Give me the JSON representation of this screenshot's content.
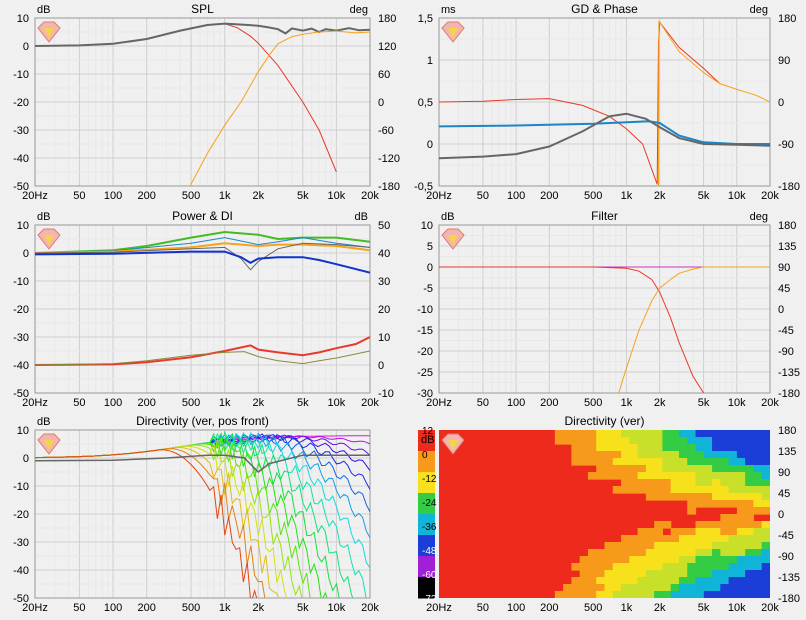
{
  "colors": {
    "red": "#e8392a",
    "orange": "#f7a21b",
    "gray": "#666666",
    "blue": "#1a86c8",
    "darkblue": "#1133cc",
    "green": "#44bb22",
    "olive": "#8b8a3a",
    "magenta": "#cc33cc",
    "grid_major": "#d0d0d0",
    "grid_minor": "#e8e8e8",
    "bg": "#f0f0f0"
  },
  "x_ticks": [
    "20Hz",
    "50",
    "100",
    "200",
    "500",
    "1k",
    "2k",
    "5k",
    "10k",
    "20k"
  ],
  "chart_data": [
    {
      "id": "spl",
      "type": "line",
      "title": "SPL",
      "ylabel_left": "dB",
      "ylabel_right": "deg",
      "xlim": [
        20,
        20000
      ],
      "xscale": "log",
      "ylim": [
        -50,
        10
      ],
      "y2lim": [
        -180,
        180
      ],
      "y_ticks": [
        "10",
        "0",
        "-10",
        "-20",
        "-30",
        "-40",
        "-50"
      ],
      "y2_ticks": [
        "180",
        "120",
        "60",
        "0",
        "-60",
        "-120",
        "-180"
      ],
      "series": [
        {
          "color": "red",
          "width": 1,
          "x": [
            20,
            50,
            100,
            200,
            400,
            700,
            1000,
            1300,
            1700,
            2000,
            3000,
            5000,
            7000,
            10000
          ],
          "y": [
            0,
            0.2,
            0.8,
            2.5,
            5.5,
            7.5,
            8,
            6.5,
            3.5,
            1,
            -7,
            -20,
            -30,
            -45
          ]
        },
        {
          "color": "gray",
          "width": 2,
          "x": [
            20,
            50,
            100,
            200,
            400,
            700,
            1000,
            1500,
            2000,
            2500,
            3000,
            3500,
            4000,
            5000,
            6000,
            7000,
            8000,
            10000,
            13000,
            16000,
            20000
          ],
          "y": [
            0,
            0.2,
            0.8,
            2.5,
            5.5,
            7.5,
            8,
            7.6,
            7.2,
            6.6,
            6,
            4.5,
            6.3,
            5.5,
            6.2,
            5,
            6,
            5.5,
            6.4,
            5.6,
            5.8
          ]
        },
        {
          "color": "orange",
          "width": 1,
          "axis": "right",
          "x": [
            490,
            700,
            1000,
            1400,
            2000,
            2500,
            3000,
            4000,
            5000,
            7000,
            10000,
            15000,
            20000
          ],
          "y": [
            -180,
            -110,
            -50,
            0,
            65,
            100,
            125,
            140,
            145,
            150,
            152,
            148,
            150
          ]
        }
      ]
    },
    {
      "id": "gd_phase",
      "type": "line",
      "title": "GD & Phase",
      "ylabel_left": "ms",
      "ylabel_right": "deg",
      "xlim": [
        20,
        20000
      ],
      "xscale": "log",
      "ylim": [
        -0.5,
        1.5
      ],
      "y2lim": [
        -180,
        180
      ],
      "y_ticks": [
        "1,5",
        "1",
        "0,5",
        "0",
        "-0,5"
      ],
      "y2_ticks": [
        "180",
        "90",
        "0",
        "-90",
        "-180"
      ],
      "series": [
        {
          "color": "red",
          "width": 1,
          "x": [
            20,
            50,
            100,
            200,
            400,
            700,
            1000,
            1400,
            1900,
            1950,
            2000,
            3000,
            5000,
            7000
          ],
          "y": [
            0.5,
            0.51,
            0.53,
            0.54,
            0.46,
            0.33,
            0.18,
            0,
            -0.48,
            1.2,
            1.45,
            1.15,
            0.9,
            0.72
          ]
        },
        {
          "color": "orange",
          "width": 1,
          "x": [
            1950,
            1970,
            2000,
            3000,
            5000,
            7000,
            10000,
            15000,
            20000
          ],
          "y": [
            -0.5,
            1.46,
            1.45,
            1.1,
            0.85,
            0.72,
            0.65,
            0.58,
            0.5
          ]
        },
        {
          "color": "blue",
          "width": 2,
          "x": [
            20,
            100,
            500,
            1000,
            1600,
            2000,
            3000,
            5000,
            10000,
            20000
          ],
          "y": [
            0.21,
            0.22,
            0.24,
            0.26,
            0.27,
            0.25,
            0.1,
            0.02,
            0,
            0
          ]
        },
        {
          "color": "gray",
          "width": 2,
          "x": [
            20,
            50,
            100,
            200,
            400,
            700,
            1000,
            1500,
            2000,
            3000,
            5000,
            10000,
            20000
          ],
          "y": [
            -0.17,
            -0.15,
            -0.12,
            -0.03,
            0.15,
            0.33,
            0.36,
            0.3,
            0.2,
            0.07,
            0,
            -0.01,
            -0.02
          ]
        }
      ]
    },
    {
      "id": "power_di",
      "type": "line",
      "title": "Power & DI",
      "ylabel_left": "dB",
      "ylabel_right": "dB",
      "xlim": [
        20,
        20000
      ],
      "xscale": "log",
      "ylim": [
        -50,
        10
      ],
      "y2lim": [
        -10,
        50
      ],
      "y_ticks": [
        "10",
        "0",
        "-10",
        "-20",
        "-30",
        "-40",
        "-50"
      ],
      "y2_ticks": [
        "50",
        "40",
        "30",
        "20",
        "10",
        "0",
        "-10"
      ],
      "series": [
        {
          "color": "green",
          "width": 2,
          "x": [
            20,
            100,
            200,
            500,
            1000,
            2000,
            3000,
            5000,
            10000,
            20000
          ],
          "y": [
            0,
            1,
            2.5,
            5.5,
            7.5,
            6.5,
            5,
            5.5,
            5.5,
            4
          ]
        },
        {
          "color": "blue",
          "width": 1,
          "x": [
            20,
            100,
            500,
            1000,
            2000,
            3000,
            5000,
            7000,
            10000,
            20000
          ],
          "y": [
            0,
            0.8,
            3.5,
            5.5,
            3,
            4,
            5.5,
            4.5,
            3.5,
            2
          ]
        },
        {
          "color": "orange",
          "width": 2,
          "x": [
            20,
            100,
            500,
            1000,
            2000,
            3000,
            5000,
            10000,
            20000
          ],
          "y": [
            0,
            0.5,
            2,
            3.5,
            2.5,
            3,
            3,
            2.5,
            1
          ]
        },
        {
          "color": "gray",
          "width": 1,
          "x": [
            20,
            100,
            500,
            1000,
            1400,
            1700,
            2000,
            3000,
            5000,
            10000,
            20000
          ],
          "y": [
            0,
            0.3,
            1.5,
            2,
            -2,
            -6,
            -3,
            1.5,
            3.5,
            3,
            2
          ]
        },
        {
          "color": "darkblue",
          "width": 2,
          "x": [
            20,
            100,
            500,
            1000,
            1400,
            1700,
            2000,
            3000,
            5000,
            7000,
            10000,
            20000
          ],
          "y": [
            -0.5,
            -0.3,
            0.5,
            0.5,
            -1.5,
            -3.5,
            -2,
            -1.5,
            -1.5,
            -2.5,
            -4,
            -7
          ]
        },
        {
          "color": "red",
          "width": 2,
          "axis": "right",
          "x": [
            20,
            100,
            200,
            500,
            1000,
            1700,
            2000,
            3000,
            5000,
            7000,
            10000,
            15000,
            20000
          ],
          "y": [
            0,
            0.2,
            1,
            2.8,
            5,
            7,
            5.5,
            4.5,
            3.5,
            4.5,
            6,
            7.5,
            10
          ]
        },
        {
          "color": "olive",
          "width": 1,
          "axis": "right",
          "x": [
            20,
            100,
            200,
            500,
            1000,
            1500,
            2000,
            3000,
            5000,
            7000,
            10000,
            20000
          ],
          "y": [
            0,
            0.5,
            1.5,
            3.5,
            4.5,
            4.8,
            3,
            1.5,
            0.5,
            1.5,
            2.5,
            5
          ]
        }
      ]
    },
    {
      "id": "filter",
      "type": "line",
      "title": "Filter",
      "ylabel_left": "dB",
      "ylabel_right": "deg",
      "xlim": [
        20,
        20000
      ],
      "xscale": "log",
      "ylim": [
        -30,
        10
      ],
      "y2lim": [
        -180,
        180
      ],
      "y_ticks": [
        "10",
        "5",
        "0",
        "-5",
        "-10",
        "-15",
        "-20",
        "-25",
        "-30"
      ],
      "y2_ticks": [
        "180",
        "135",
        "90",
        "45",
        "0",
        "-45",
        "-90",
        "-135",
        "-180"
      ],
      "series": [
        {
          "color": "magenta",
          "width": 1,
          "x": [
            20,
            20000
          ],
          "y": [
            0,
            0
          ]
        },
        {
          "color": "red",
          "width": 1,
          "x": [
            20,
            200,
            500,
            1000,
            1300,
            1700,
            2000,
            2500,
            3000,
            4000,
            5000
          ],
          "y": [
            0,
            0,
            0,
            -0.3,
            -1,
            -3,
            -6,
            -12,
            -18,
            -26,
            -30
          ]
        },
        {
          "color": "orange",
          "width": 1,
          "x": [
            850,
            1000,
            1300,
            1700,
            2000,
            2500,
            3000,
            4000,
            5000,
            10000,
            20000
          ],
          "y": [
            -30,
            -24,
            -15,
            -8,
            -5,
            -3,
            -1.5,
            -0.5,
            0,
            0,
            0
          ]
        }
      ]
    },
    {
      "id": "directivity",
      "type": "line",
      "title": "Directivity (ver, pos front)",
      "ylabel_left": "dB",
      "xlim": [
        20,
        20000
      ],
      "xscale": "log",
      "ylim": [
        -50,
        10
      ],
      "y_ticks": [
        "10",
        "0",
        "-10",
        "-20",
        "-30",
        "-40",
        "-50"
      ],
      "series_family": {
        "count": 18,
        "top_peak_db": 8,
        "lowest_db": -50
      }
    },
    {
      "id": "directivity_map",
      "type": "heatmap",
      "title": "Directivity (ver)",
      "xlim": [
        20,
        20000
      ],
      "xscale": "log",
      "ylim": [
        -180,
        180
      ],
      "colorbar_label": "dB",
      "colorbar_ticks": [
        "12",
        "0",
        "-12",
        "-24",
        "-36",
        "-48",
        "-60",
        "-72"
      ],
      "y_ticks": [
        "180",
        "135",
        "90",
        "45",
        "0",
        "-45",
        "-90",
        "-135",
        "-180"
      ]
    }
  ]
}
